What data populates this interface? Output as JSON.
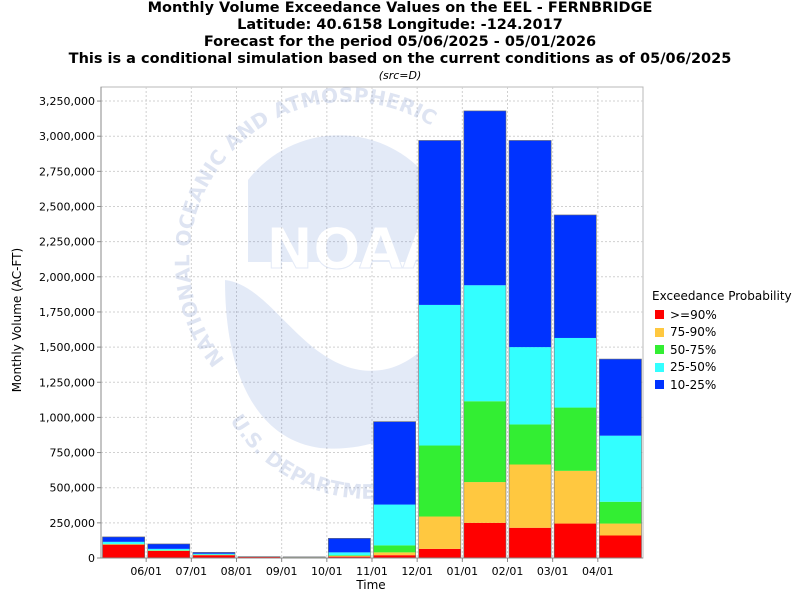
{
  "header": {
    "title_line1": "Monthly Volume Exceedance Values on the EEL - FERNBRIDGE",
    "title_line2": "Latitude: 40.6158 Longitude: -124.2017",
    "title_line3": "Forecast for the period 05/06/2025 - 05/01/2026",
    "title_line4": "This is a conditional simulation based on the current conditions as of 05/06/2025",
    "source": "(src=D)"
  },
  "watermark": {
    "logo_text": "NOAA",
    "ring_top": "NATIONAL OCEANIC AND ATMOSPHERIC",
    "ring_bottom": "U.S. DEPARTMENT OF COMMERCE"
  },
  "legend": {
    "title": "Exceedance Probability",
    "items": [
      {
        "label": ">=90%",
        "color": "#ff0000"
      },
      {
        "label": "75-90%",
        "color": "#ffc840"
      },
      {
        "label": "50-75%",
        "color": "#33ee33"
      },
      {
        "label": "25-50%",
        "color": "#33ffff"
      },
      {
        "label": "10-25%",
        "color": "#0033ff"
      }
    ]
  },
  "chart_data": {
    "type": "bar",
    "stacked": true,
    "xlabel": "Time",
    "ylabel": "Monthly Volume (AC-FT)",
    "ylim": [
      0,
      3350000
    ],
    "yticks": [
      0,
      250000,
      500000,
      750000,
      1000000,
      1250000,
      1500000,
      1750000,
      2000000,
      2250000,
      2500000,
      2750000,
      3000000,
      3250000
    ],
    "ytick_labels": [
      "0",
      "250,000",
      "500,000",
      "750,000",
      "1,000,000",
      "1,250,000",
      "1,500,000",
      "1,750,000",
      "2,000,000",
      "2,250,000",
      "2,500,000",
      "2,750,000",
      "3,000,000",
      "3,250,000"
    ],
    "x_tick_labels": [
      "06/01",
      "07/01",
      "08/01",
      "09/01",
      "10/01",
      "11/01",
      "12/01",
      "01/01",
      "02/01",
      "03/01",
      "04/01"
    ],
    "grid": true,
    "legend_position": "right",
    "series_colors": [
      "#ff0000",
      "#ffc840",
      "#33ee33",
      "#33ffff",
      "#0033ff"
    ],
    "months": [
      {
        "levels": [
          95000,
          98000,
          100000,
          115000,
          150000
        ]
      },
      {
        "levels": [
          50000,
          52000,
          55000,
          65000,
          100000
        ]
      },
      {
        "levels": [
          20000,
          22000,
          24000,
          30000,
          40000
        ]
      },
      {
        "levels": [
          7000,
          7500,
          8000,
          9000,
          10000
        ]
      },
      {
        "levels": [
          5000,
          5500,
          6000,
          7000,
          8000
        ]
      },
      {
        "levels": [
          10000,
          15000,
          20000,
          40000,
          140000
        ]
      },
      {
        "levels": [
          20000,
          40000,
          90000,
          380000,
          970000
        ]
      },
      {
        "levels": [
          65000,
          295000,
          800000,
          1800000,
          2970000
        ]
      },
      {
        "levels": [
          250000,
          540000,
          1115000,
          1940000,
          3180000
        ]
      },
      {
        "levels": [
          215000,
          665000,
          950000,
          1500000,
          2970000
        ]
      },
      {
        "levels": [
          245000,
          620000,
          1070000,
          1565000,
          2440000
        ]
      },
      {
        "levels": [
          160000,
          245000,
          400000,
          870000,
          1415000
        ]
      }
    ]
  }
}
